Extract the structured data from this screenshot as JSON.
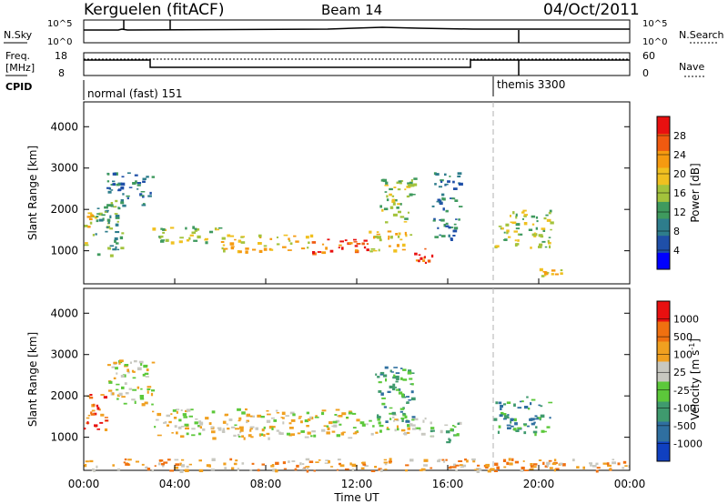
{
  "header": {
    "station": "Kerguelen (fitACF)",
    "beam": "Beam 14",
    "date": "04/Oct/2011"
  },
  "info_panels": {
    "nsky_label": "N.Sky",
    "nsearch_label": "N.Search",
    "nsky_ticks": [
      "10^5",
      "10^0"
    ],
    "nsky_right_ticks": [
      "10^5",
      "10^0"
    ],
    "freq_label_line1": "Freq.",
    "freq_label_line2": "[MHz]",
    "freq_ticks": [
      "18",
      "8"
    ],
    "nave_label": "Nave",
    "nave_ticks": [
      "60",
      "0"
    ],
    "cpid_label": "CPID",
    "cpid_modes": [
      {
        "name": "normal (fast) 151",
        "start_hour": 0
      },
      {
        "name": "themis 3300",
        "start_hour": 19
      }
    ]
  },
  "time_axis": {
    "title": "Time UT",
    "ticks": [
      "00:00",
      "04:00",
      "08:00",
      "12:00",
      "16:00",
      "20:00",
      "00:00"
    ],
    "range_hours": [
      0,
      24
    ]
  },
  "power_colorbar": {
    "title": "Power [dB]",
    "ticks": [
      "28",
      "24",
      "20",
      "16",
      "12",
      "8",
      "4"
    ],
    "colors": [
      "#0000ff",
      "#1f4fa8",
      "#2e7d8c",
      "#3f9a5e",
      "#a3c33c",
      "#f0c020",
      "#f59a10",
      "#f05a10",
      "#e81010"
    ]
  },
  "velocity_colorbar": {
    "title": "Velocity [m s",
    "title_sup": "-1",
    "title_end": "]",
    "ticks": [
      "1000",
      "500",
      "100",
      "25",
      "-25",
      "-100",
      "-500",
      "-1000"
    ],
    "colors": [
      "#1040c0",
      "#2f6fa0",
      "#3f9a6e",
      "#5cc83a",
      "#c8c8c0",
      "#f0a020",
      "#f07010",
      "#e81010"
    ]
  },
  "chart_data": [
    {
      "type": "heatmap",
      "title": "Power",
      "ylabel": "Slant Range [km]",
      "xlabel": "",
      "xlim": [
        0,
        24
      ],
      "ylim": [
        200,
        4600
      ],
      "yticks": [
        "4000",
        "3000",
        "2000",
        "1000"
      ],
      "ytick_values": [
        4000,
        3000,
        2000,
        1000
      ],
      "echo_regions": [
        {
          "t0": 0.0,
          "t1": 0.5,
          "r0": 1100,
          "r1": 2000,
          "level": 5
        },
        {
          "t0": 0.5,
          "t1": 1.7,
          "r0": 900,
          "r1": 2300,
          "level": 3
        },
        {
          "t0": 1.0,
          "t1": 3.0,
          "r0": 2100,
          "r1": 2900,
          "level": 2
        },
        {
          "t0": 3.0,
          "t1": 6.0,
          "r0": 1200,
          "r1": 1600,
          "level": 4
        },
        {
          "t0": 6.0,
          "t1": 10.0,
          "r0": 1000,
          "r1": 1400,
          "level": 5
        },
        {
          "t0": 10.0,
          "t1": 12.5,
          "r0": 900,
          "r1": 1300,
          "level": 7
        },
        {
          "t0": 12.5,
          "t1": 14.5,
          "r0": 1000,
          "r1": 1500,
          "level": 5
        },
        {
          "t0": 13.0,
          "t1": 14.5,
          "r0": 1700,
          "r1": 2800,
          "level": 4
        },
        {
          "t0": 14.5,
          "t1": 15.3,
          "r0": 700,
          "r1": 1100,
          "level": 7
        },
        {
          "t0": 15.3,
          "t1": 16.5,
          "r0": 1300,
          "r1": 2900,
          "level": 2
        },
        {
          "t0": 18.0,
          "t1": 20.5,
          "r0": 1100,
          "r1": 2000,
          "level": 4
        },
        {
          "t0": 20.0,
          "t1": 21.0,
          "r0": 400,
          "r1": 600,
          "level": 5
        }
      ]
    },
    {
      "type": "heatmap",
      "title": "Velocity",
      "ylabel": "Slant Range [km]",
      "xlabel": "Time UT",
      "xlim": [
        0,
        24
      ],
      "ylim": [
        200,
        4600
      ],
      "yticks": [
        "4000",
        "3000",
        "2000",
        "1000"
      ],
      "ytick_values": [
        4000,
        3000,
        2000,
        1000
      ],
      "echo_regions": [
        {
          "t0": 0.0,
          "t1": 1.0,
          "r0": 1100,
          "r1": 2100,
          "level": 6
        },
        {
          "t0": 1.0,
          "t1": 3.0,
          "r0": 1800,
          "r1": 2900,
          "level": 4
        },
        {
          "t0": 3.0,
          "t1": 12.0,
          "r0": 1000,
          "r1": 1700,
          "level": 4
        },
        {
          "t0": 12.0,
          "t1": 15.0,
          "r0": 1100,
          "r1": 1600,
          "level": 4
        },
        {
          "t0": 12.8,
          "t1": 14.5,
          "r0": 1400,
          "r1": 2800,
          "level": 2
        },
        {
          "t0": 15.0,
          "t1": 16.5,
          "r0": 900,
          "r1": 1400,
          "level": 3
        },
        {
          "t0": 18.0,
          "t1": 20.5,
          "r0": 1100,
          "r1": 2000,
          "level": 2
        },
        {
          "t0": 0.0,
          "t1": 24.0,
          "r0": 200,
          "r1": 500,
          "level": 5
        }
      ]
    }
  ]
}
